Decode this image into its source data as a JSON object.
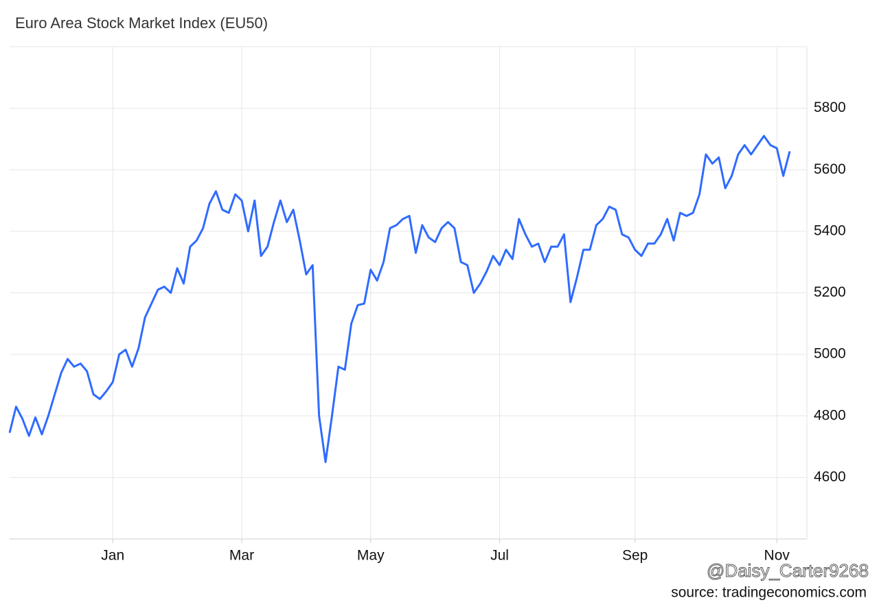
{
  "chart_data": {
    "type": "line",
    "title": "Euro Area Stock Market Index (EU50)",
    "watermark": "@Daisy_Carter9268",
    "source": "source: tradingeconomics.com",
    "color": "#2f6bff",
    "grid": true,
    "categories": [
      null,
      null,
      null,
      null,
      null,
      null,
      null,
      null,
      null,
      null,
      null,
      null,
      null,
      null,
      null,
      null,
      "Jan",
      null,
      null,
      null,
      null,
      null,
      null,
      null,
      null,
      null,
      null,
      null,
      null,
      null,
      null,
      null,
      null,
      null,
      null,
      null,
      "Mar",
      null,
      null,
      null,
      null,
      null,
      null,
      null,
      null,
      null,
      null,
      null,
      null,
      null,
      null,
      null,
      null,
      null,
      null,
      null,
      "May",
      null,
      null,
      null,
      null,
      null,
      null,
      null,
      null,
      null,
      null,
      null,
      null,
      null,
      null,
      null,
      null,
      null,
      null,
      null,
      "Jul",
      null,
      null,
      null,
      null,
      null,
      null,
      null,
      null,
      null,
      null,
      null,
      null,
      null,
      null,
      null,
      null,
      null,
      null,
      null,
      null,
      "Sep",
      null,
      null,
      null,
      null,
      null,
      null,
      null,
      null,
      null,
      null,
      null,
      null,
      null,
      null,
      null,
      null,
      null,
      null,
      null,
      null,
      null,
      "Nov",
      null,
      null
    ],
    "values": [
      4745,
      4830,
      4790,
      4735,
      4795,
      4740,
      4800,
      4870,
      4940,
      4985,
      4960,
      4970,
      4945,
      4870,
      4855,
      4880,
      4910,
      5000,
      5015,
      4960,
      5020,
      5120,
      5165,
      5210,
      5220,
      5200,
      5280,
      5230,
      5350,
      5370,
      5410,
      5490,
      5530,
      5470,
      5460,
      5520,
      5500,
      5400,
      5500,
      5320,
      5350,
      5430,
      5500,
      5430,
      5470,
      5370,
      5260,
      5290,
      4800,
      4650,
      4800,
      4960,
      4950,
      5100,
      5160,
      5165,
      5275,
      5240,
      5300,
      5410,
      5420,
      5440,
      5450,
      5330,
      5420,
      5380,
      5365,
      5410,
      5430,
      5410,
      5300,
      5290,
      5200,
      5230,
      5270,
      5320,
      5290,
      5340,
      5310,
      5440,
      5390,
      5350,
      5360,
      5300,
      5350,
      5350,
      5390,
      5170,
      5250,
      5340,
      5340,
      5420,
      5440,
      5480,
      5470,
      5390,
      5380,
      5340,
      5320,
      5360,
      5360,
      5390,
      5440,
      5370,
      5460,
      5450,
      5460,
      5520,
      5650,
      5620,
      5640,
      5540,
      5580,
      5650,
      5680,
      5650,
      5680,
      5710,
      5680,
      5670,
      5580,
      5660
    ],
    "ylim": [
      4400,
      6000
    ],
    "yticks": [
      4600,
      4800,
      5000,
      5200,
      5400,
      5600,
      5800
    ]
  }
}
